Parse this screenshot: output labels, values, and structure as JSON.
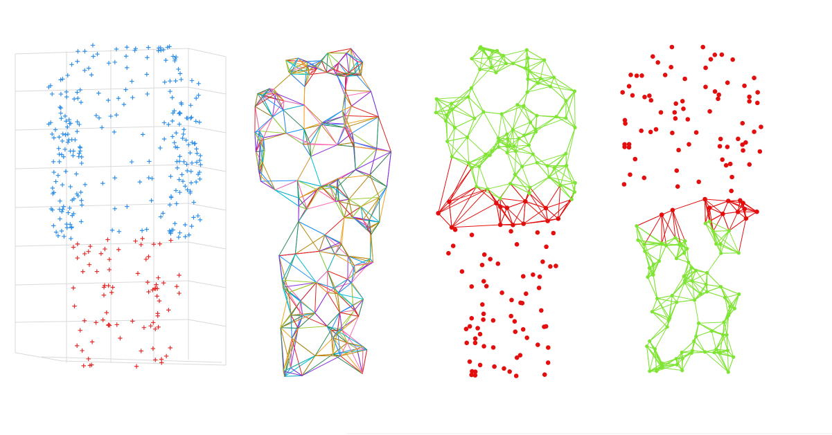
{
  "figure": {
    "panels": [
      {
        "id": "a",
        "kind": "scatter-3d-plus-markers",
        "groups": [
          {
            "color": "#2f8fe8",
            "count": 260,
            "region": "upper-torso"
          },
          {
            "color": "#e42b2b",
            "count": 80,
            "region": "lower-legs"
          }
        ],
        "grid": true
      },
      {
        "id": "b",
        "kind": "mesh-wireframe",
        "edge_palette": [
          "#8a2be2",
          "#e0201e",
          "#1e90ff",
          "#f0a020",
          "#2e8b57",
          "#ff69b4",
          "#9acd32",
          "#00bcd4",
          "#b8860b"
        ],
        "node_count": 150
      },
      {
        "id": "c",
        "kind": "graph-partition",
        "colors": {
          "active": "#7fe433",
          "inactive": "#e30e0e"
        },
        "node_count": 170
      },
      {
        "id": "d",
        "kind": "graph-partition",
        "colors": {
          "active": "#7fe433",
          "inactive": "#e30e0e"
        },
        "node_count": 170
      }
    ]
  }
}
